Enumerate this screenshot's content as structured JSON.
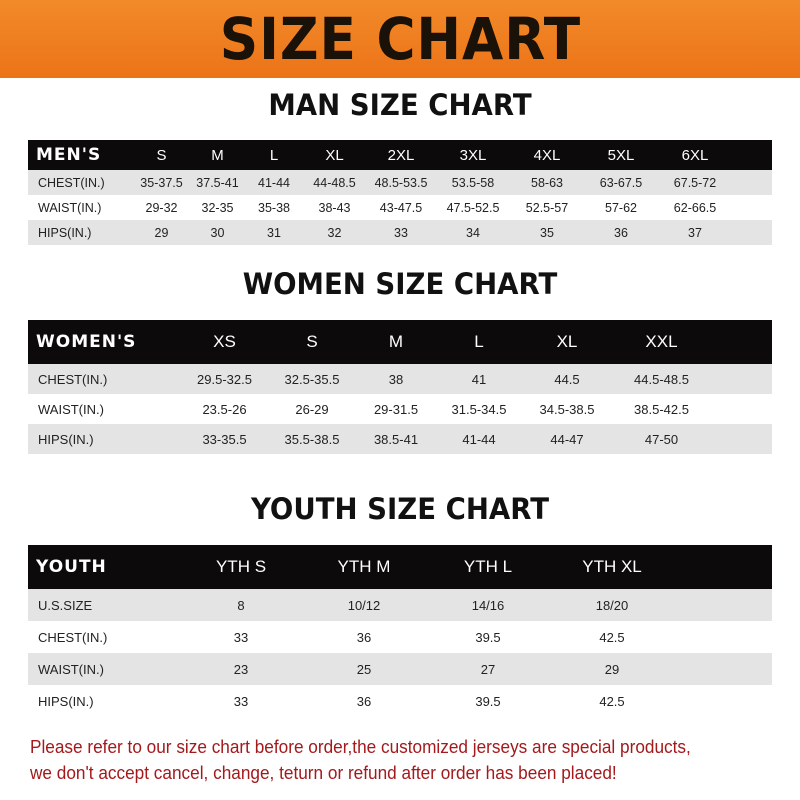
{
  "banner": {
    "title": "SIZE CHART",
    "color": "#ee7b1f"
  },
  "men": {
    "title": "MAN SIZE CHART",
    "header": "MEN'S",
    "sizes": [
      "S",
      "M",
      "L",
      "XL",
      "2XL",
      "3XL",
      "4XL",
      "5XL",
      "6XL"
    ],
    "rows": [
      {
        "label": "CHEST(IN.)",
        "values": [
          "35-37.5",
          "37.5-41",
          "41-44",
          "44-48.5",
          "48.5-53.5",
          "53.5-58",
          "58-63",
          "63-67.5",
          "67.5-72"
        ]
      },
      {
        "label": "WAIST(IN.)",
        "values": [
          "29-32",
          "32-35",
          "35-38",
          "38-43",
          "43-47.5",
          "47.5-52.5",
          "52.5-57",
          "57-62",
          "62-66.5"
        ]
      },
      {
        "label": "HIPS(IN.)",
        "values": [
          "29",
          "30",
          "31",
          "32",
          "33",
          "34",
          "35",
          "36",
          "37"
        ]
      }
    ]
  },
  "women": {
    "title": "WOMEN SIZE CHART",
    "header": "WOMEN'S",
    "sizes": [
      "XS",
      "S",
      "M",
      "L",
      "XL",
      "XXL"
    ],
    "rows": [
      {
        "label": "CHEST(IN.)",
        "values": [
          "29.5-32.5",
          "32.5-35.5",
          "38",
          "41",
          "44.5",
          "44.5-48.5"
        ]
      },
      {
        "label": "WAIST(IN.)",
        "values": [
          "23.5-26",
          "26-29",
          "29-31.5",
          "31.5-34.5",
          "34.5-38.5",
          "38.5-42.5"
        ]
      },
      {
        "label": "HIPS(IN.)",
        "values": [
          "33-35.5",
          "35.5-38.5",
          "38.5-41",
          "41-44",
          "44-47",
          "47-50"
        ]
      }
    ]
  },
  "youth": {
    "title": "YOUTH SIZE CHART",
    "header": "YOUTH",
    "sizes": [
      "YTH S",
      "YTH M",
      "YTH L",
      "YTH XL"
    ],
    "rows": [
      {
        "label": "U.S.SIZE",
        "values": [
          "8",
          "10/12",
          "14/16",
          "18/20"
        ]
      },
      {
        "label": "CHEST(IN.)",
        "values": [
          "33",
          "36",
          "39.5",
          "42.5"
        ]
      },
      {
        "label": "WAIST(IN.)",
        "values": [
          "23",
          "25",
          "27",
          "29"
        ]
      },
      {
        "label": "HIPS(IN.)",
        "values": [
          "33",
          "36",
          "39.5",
          "42.5"
        ]
      }
    ]
  },
  "notice": {
    "line1": "Please refer to our size chart before order,the customized jerseys are special products,",
    "line2": "we don't accept cancel, change, teturn or refund after order has been placed!",
    "color": "#a3191c"
  }
}
